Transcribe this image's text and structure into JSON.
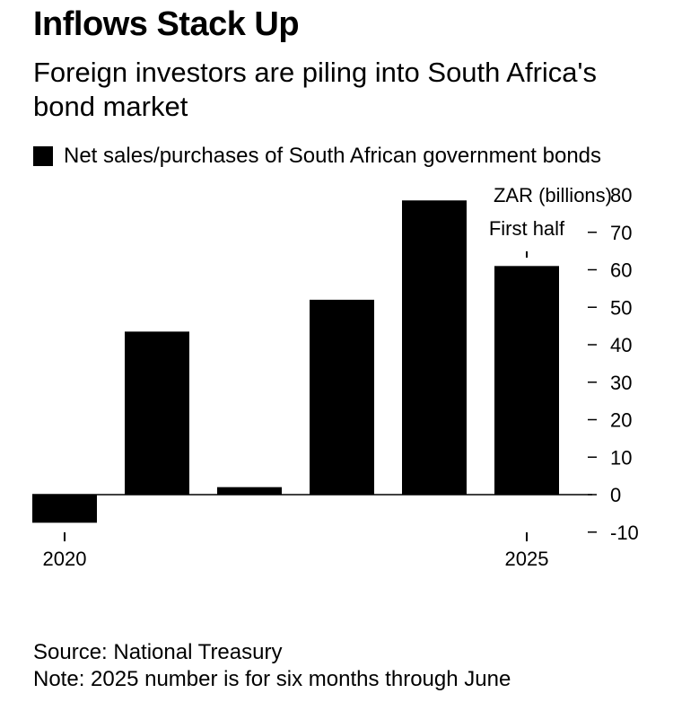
{
  "header": {
    "title": "Inflows Stack Up",
    "subtitle": "Foreign investors are piling into South Africa's bond market"
  },
  "legend": {
    "label": "Net sales/purchases of South African government bonds",
    "color": "#000000"
  },
  "chart_data": {
    "type": "bar",
    "categories": [
      "2020",
      "2021",
      "2022",
      "2023",
      "2024",
      "2025"
    ],
    "x_tick_labels": [
      {
        "category": "2020",
        "label": "2020"
      },
      {
        "category": "2025",
        "label": "2025"
      }
    ],
    "values": [
      -7.5,
      43.5,
      2.0,
      52.0,
      78.5,
      61.0
    ],
    "unit_label": "ZAR (billions)",
    "yticks": [
      80,
      70,
      60,
      50,
      40,
      30,
      20,
      10,
      0,
      -10
    ],
    "ylim": [
      -10,
      80
    ],
    "annotation": {
      "category": "2025",
      "text": "First half"
    },
    "bar_color": "#000000"
  },
  "footer": {
    "source": "Source: National Treasury",
    "note": "Note: 2025 number is for six months through June"
  }
}
